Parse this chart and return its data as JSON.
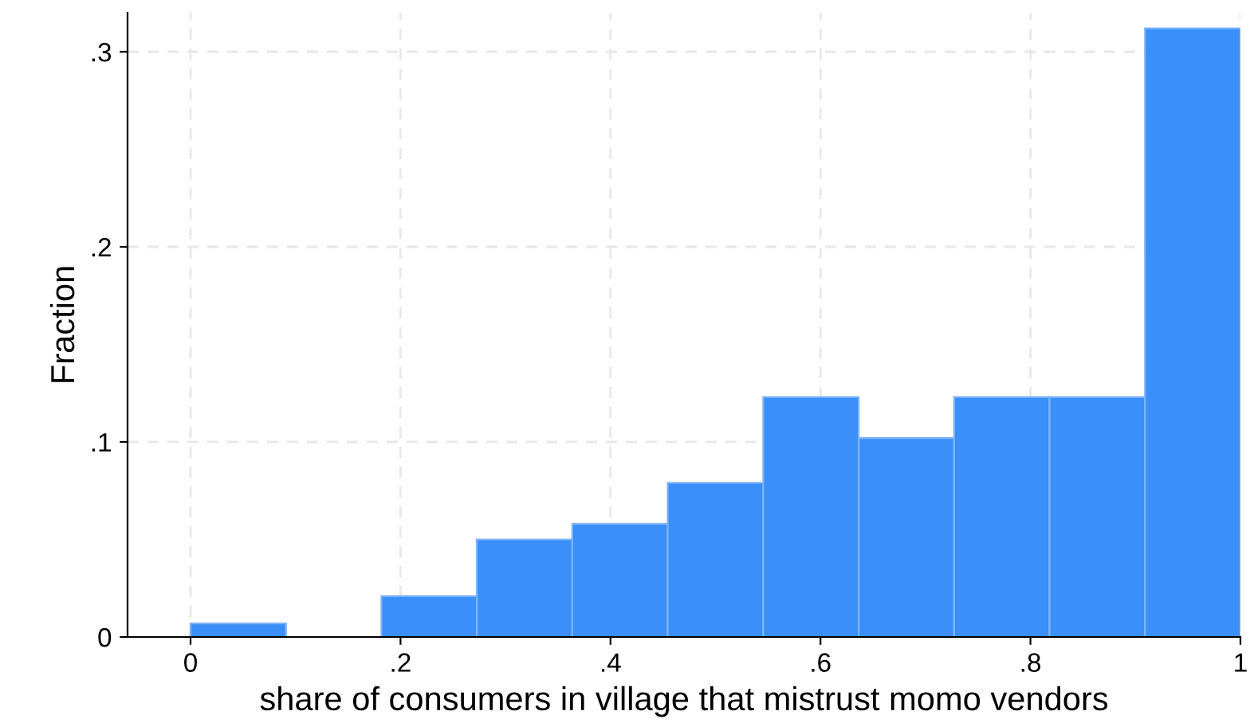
{
  "chart_data": {
    "type": "histogram",
    "xlabel": "share of consumers in village that mistrust momo vendors",
    "ylabel": "Fraction",
    "bins": [
      0,
      0.0909,
      0.1818,
      0.2727,
      0.3636,
      0.4545,
      0.5455,
      0.6364,
      0.7273,
      0.8182,
      0.9091,
      1
    ],
    "values": [
      0.007,
      0,
      0.021,
      0.05,
      0.058,
      0.079,
      0.123,
      0.102,
      0.123,
      0.123,
      0.312
    ],
    "color": "#3a8ff8",
    "xlim": [
      -0.06,
      1
    ],
    "ylim": [
      0,
      0.32
    ],
    "xticks": [
      0,
      {
        "value": 0.2,
        "label": ".2"
      },
      {
        "value": 0.4,
        "label": ".4"
      },
      {
        "value": 0.6,
        "label": ".6"
      },
      {
        "value": 0.8,
        "label": ".8"
      },
      1
    ],
    "yticks": [
      0,
      {
        "value": 0.1,
        "label": ".1"
      },
      {
        "value": 0.2,
        "label": ".2"
      },
      {
        "value": 0.3,
        "label": ".3"
      }
    ],
    "grid": true
  }
}
